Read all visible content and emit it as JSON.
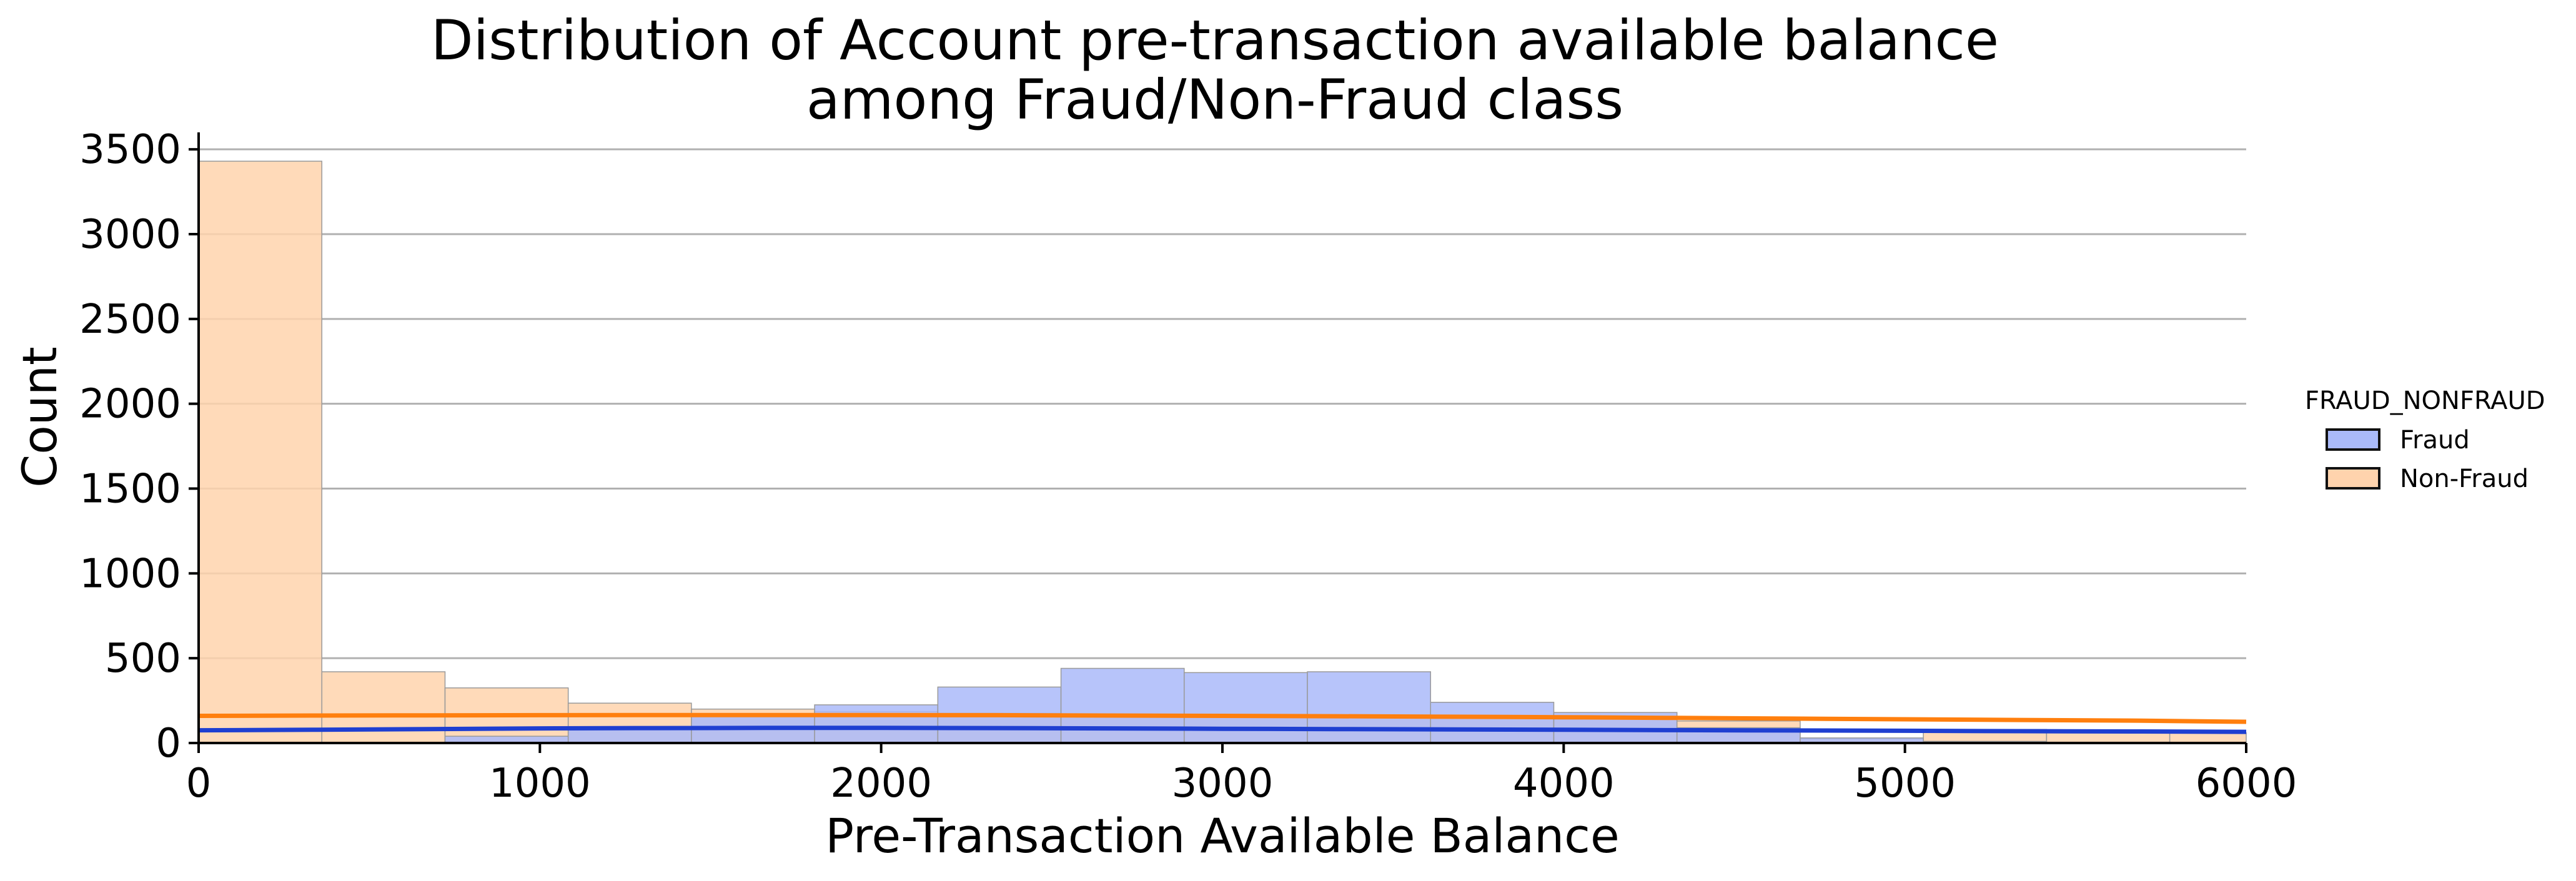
{
  "chart_data": {
    "type": "bar",
    "title_lines": [
      "Distribution of Account pre-transaction available balance",
      "among Fraud/Non-Fraud class"
    ],
    "xlabel": "Pre-Transaction Available Balance",
    "ylabel": "Count",
    "xlim": [
      0,
      6000
    ],
    "ylim": [
      0,
      3600
    ],
    "x_ticks": [
      "0",
      "1000",
      "2000",
      "3000",
      "4000",
      "5000",
      "6000"
    ],
    "y_ticks": [
      "0",
      "500",
      "1000",
      "1500",
      "2000",
      "2500",
      "3000",
      "3500"
    ],
    "grid": "horizontal",
    "legend_position": "right",
    "legend_title": "FRAUD_NONFRAUD",
    "bin_edges": [
      0,
      361,
      722,
      1083,
      1444,
      1805,
      2166,
      2527,
      2888,
      3249,
      3610,
      3971,
      4332,
      4693,
      5054,
      5415,
      5776,
      6000
    ],
    "series": [
      {
        "name": "Fraud",
        "fill_color": "#aabaf9",
        "kde_color": "#1f3fd1",
        "values": [
          0,
          0,
          40,
          80,
          170,
          225,
          330,
          440,
          415,
          420,
          240,
          180,
          90,
          30,
          10,
          5,
          0
        ],
        "kde": [
          75,
          78,
          82,
          86,
          88,
          89,
          89,
          88,
          86,
          84,
          82,
          80,
          78,
          76,
          74,
          72,
          70,
          68,
          66
        ]
      },
      {
        "name": "Non-Fraud",
        "fill_color": "#ffd3ad",
        "kde_color": "#ff7f0e",
        "values": [
          3430,
          420,
          325,
          235,
          200,
          185,
          175,
          165,
          155,
          150,
          145,
          140,
          130,
          25,
          80,
          70,
          60
        ],
        "kde": [
          160,
          162,
          163,
          164,
          165,
          165,
          165,
          164,
          162,
          160,
          158,
          155,
          152,
          148,
          144,
          140,
          136,
          132,
          125
        ]
      }
    ]
  }
}
